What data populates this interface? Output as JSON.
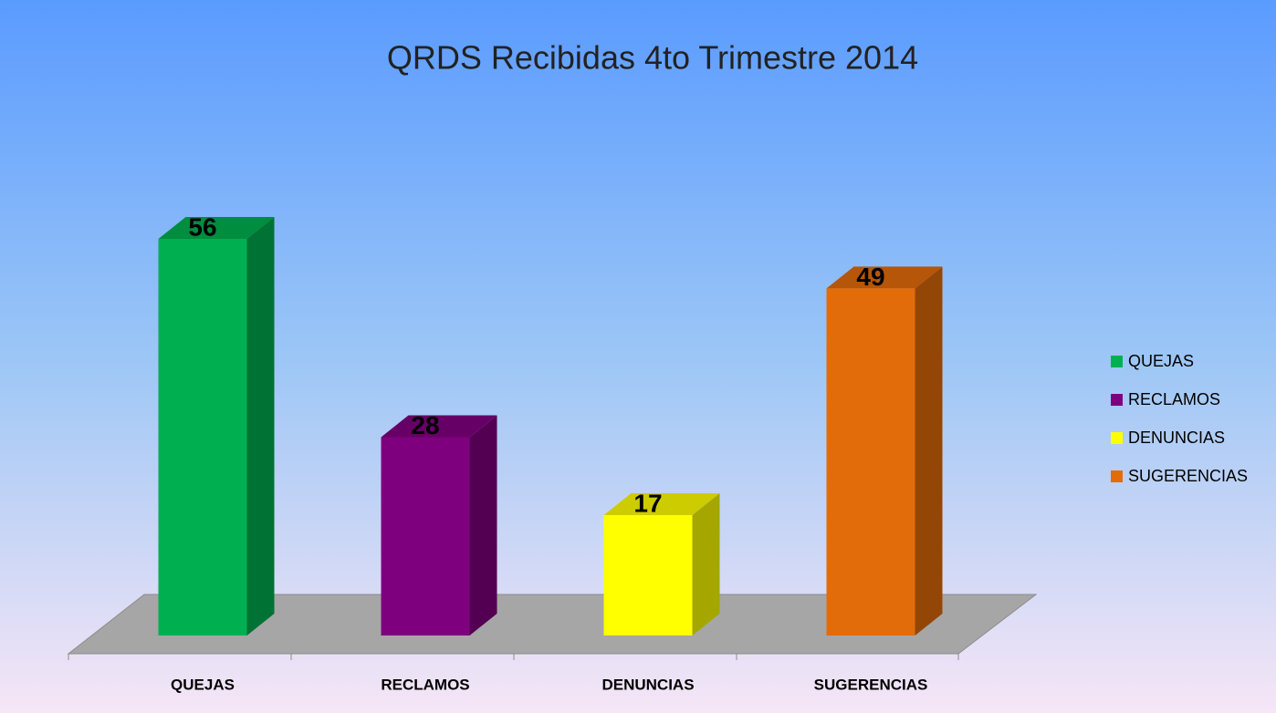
{
  "chart_data": {
    "type": "bar3d",
    "title": "QRDS Recibidas 4to Trimestre 2014",
    "categories": [
      "QUEJAS",
      "RECLAMOS",
      "DENUNCIAS",
      "SUGERENCIAS"
    ],
    "values": [
      56,
      28,
      17,
      49
    ],
    "colors": [
      "#00b050",
      "#7f007f",
      "#ffff00",
      "#e36c0a"
    ],
    "legend": "right"
  }
}
